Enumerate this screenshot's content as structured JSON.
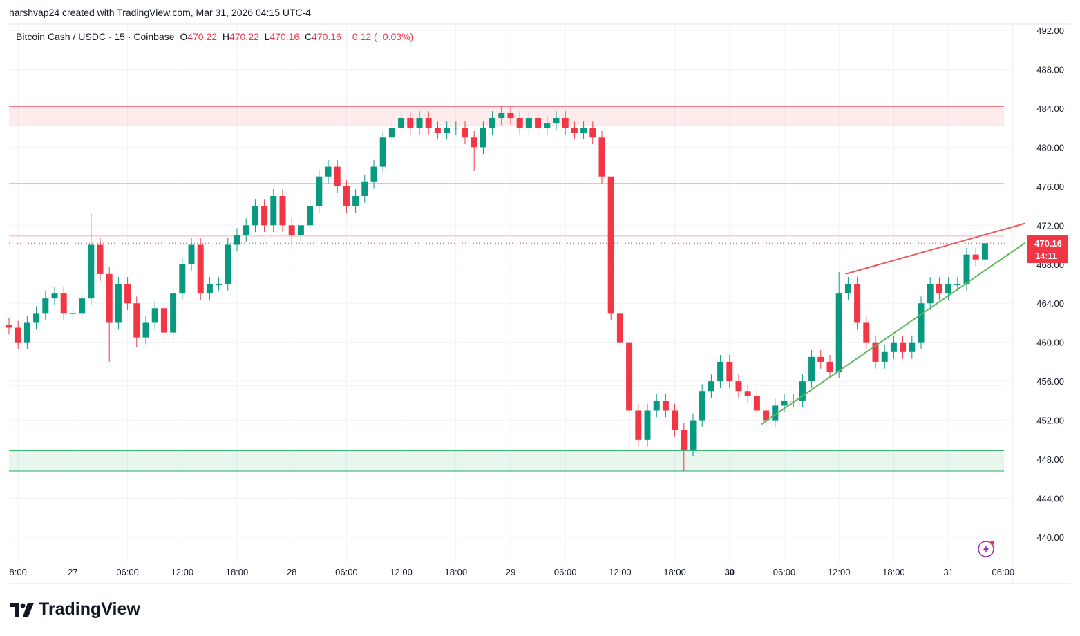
{
  "header": {
    "credit": "harshvap24 created with TradingView.com, Mar 31, 2026 04:15 UTC-4"
  },
  "legend": {
    "symbol": "Bitcoin Cash / USDC · 15 · Coinbase",
    "o_label": "O",
    "o": "470.22",
    "h_label": "H",
    "h": "470.22",
    "l_label": "L",
    "l": "470.16",
    "c_label": "C",
    "c": "470.16",
    "change": "−0.12 (−0.03%)"
  },
  "price_badge": {
    "price": "470.16",
    "countdown": "14:11"
  },
  "branding": {
    "logo": "TradingView"
  },
  "colors": {
    "up": "#089981",
    "down": "#f23645",
    "resistance_zone": "#f23645",
    "support_zone": "#22ab5c",
    "trend_upper": "#f05a5a",
    "trend_lower": "#5cb85c"
  },
  "chart_data": {
    "type": "candlestick",
    "title": "Bitcoin Cash / USDC · 15 · Coinbase",
    "ylim": [
      438,
      494
    ],
    "y_ticks": [
      "492.00",
      "488.00",
      "484.00",
      "480.00",
      "476.00",
      "472.00",
      "468.00",
      "464.00",
      "460.00",
      "456.00",
      "452.00",
      "448.00",
      "444.00",
      "440.00"
    ],
    "x_ticks": [
      {
        "label": "8:00",
        "h": 1
      },
      {
        "label": "27",
        "h": 7,
        "bold": false
      },
      {
        "label": "06:00",
        "h": 13
      },
      {
        "label": "12:00",
        "h": 19
      },
      {
        "label": "18:00",
        "h": 25
      },
      {
        "label": "28",
        "h": 31
      },
      {
        "label": "06:00",
        "h": 37
      },
      {
        "label": "12:00",
        "h": 43
      },
      {
        "label": "18:00",
        "h": 49
      },
      {
        "label": "29",
        "h": 55
      },
      {
        "label": "06:00",
        "h": 61
      },
      {
        "label": "12:00",
        "h": 67
      },
      {
        "label": "18:00",
        "h": 73
      },
      {
        "label": "30",
        "h": 79,
        "bold": true
      },
      {
        "label": "06:00",
        "h": 85
      },
      {
        "label": "12:00",
        "h": 91
      },
      {
        "label": "18:00",
        "h": 97
      },
      {
        "label": "31",
        "h": 103
      },
      {
        "label": "06:00",
        "h": 109
      }
    ],
    "open_start": 461.8,
    "closes": [
      461.5,
      460,
      462,
      463,
      464.5,
      465,
      463,
      463,
      464.5,
      470,
      467,
      462,
      466,
      464,
      460.5,
      462,
      463.5,
      461,
      465,
      468,
      470,
      465,
      466,
      466,
      470,
      471,
      472,
      474,
      472,
      475,
      472,
      471,
      472,
      474,
      477,
      478,
      476,
      474,
      475,
      476.5,
      478,
      481,
      482,
      483,
      482,
      483,
      482,
      481.5,
      482,
      482,
      481,
      480,
      482,
      483,
      483.5,
      483,
      482,
      483,
      482,
      482.5,
      483,
      482,
      481.5,
      482,
      481,
      477,
      463,
      460,
      453,
      450,
      453,
      454,
      453,
      451,
      449,
      452,
      455,
      456,
      458,
      456,
      455,
      454.5,
      453,
      452,
      453.5,
      454,
      454,
      456,
      458.5,
      458,
      457,
      465,
      466,
      462,
      460,
      458,
      459,
      460,
      459,
      460,
      464,
      466,
      465,
      466,
      466,
      469,
      468.5,
      470.16
    ],
    "wick_overrides": [
      {
        "i": 9,
        "high": 473.2
      },
      {
        "i": 11,
        "low": 458
      },
      {
        "i": 14,
        "low": 459.5
      },
      {
        "i": 51,
        "low": 477.6
      },
      {
        "i": 66,
        "high": 476
      },
      {
        "i": 74,
        "low": 446.8
      },
      {
        "i": 68,
        "low": 449.2
      },
      {
        "i": 91,
        "high": 467.2
      },
      {
        "i": 108,
        "high": 471
      }
    ],
    "zones": [
      {
        "name": "resistance",
        "top": 484.2,
        "bottom": 482.2
      },
      {
        "name": "support",
        "top": 448.9,
        "bottom": 446.8
      }
    ],
    "levels": [
      476.3,
      470.9,
      455.6,
      451.5
    ],
    "last_price": 470.16,
    "trendlines": [
      {
        "name": "upper",
        "from": {
          "h": 91.7,
          "p": 467
        },
        "to": {
          "h": 111.4,
          "p": 472.2
        }
      },
      {
        "name": "lower",
        "from": {
          "h": 82.5,
          "p": 451.6
        },
        "to": {
          "h": 111.4,
          "p": 470.2
        }
      }
    ]
  }
}
